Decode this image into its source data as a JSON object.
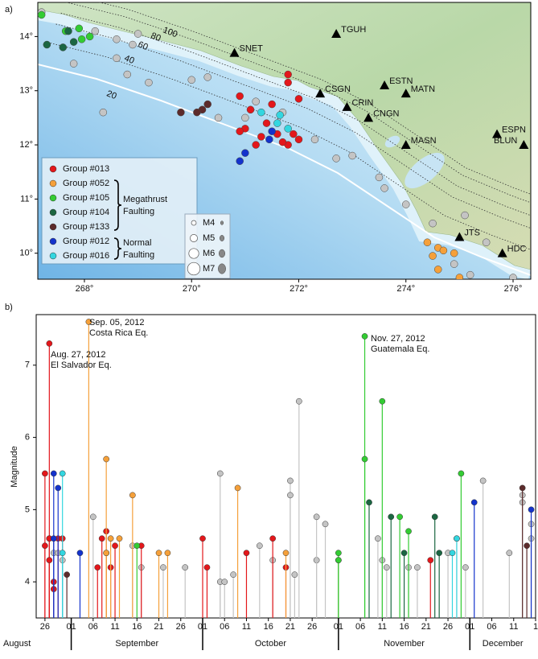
{
  "chart_data": [
    {
      "type": "scatter",
      "panel_label": "a)",
      "xlim": [
        267.13,
        276.33
      ],
      "ylim": [
        9.52,
        14.63
      ],
      "xticks": [
        {
          "value": 268,
          "label": "268°"
        },
        {
          "value": 270,
          "label": "270°"
        },
        {
          "value": 272,
          "label": "272°"
        },
        {
          "value": 274,
          "label": "274°"
        },
        {
          "value": 276,
          "label": "276°"
        }
      ],
      "yticks": [
        {
          "value": 10,
          "label": "10°"
        },
        {
          "value": 11,
          "label": "11°"
        },
        {
          "value": 12,
          "label": "12°"
        },
        {
          "value": 13,
          "label": "13°"
        },
        {
          "value": 14,
          "label": "14°"
        }
      ],
      "depth_contours": [
        100,
        80,
        60,
        40,
        20
      ],
      "fault_labels": [
        [
          "Megathrust",
          "Faulting"
        ],
        [
          "Normal",
          "Faulting"
        ]
      ],
      "magnitude_legend": [
        "M4",
        "M5",
        "M6",
        "M7"
      ],
      "stations": [
        {
          "name": "SNET",
          "lon": 270.8,
          "lat": 13.7
        },
        {
          "name": "TGUH",
          "lon": 272.7,
          "lat": 14.05
        },
        {
          "name": "CSGN",
          "lon": 272.4,
          "lat": 12.95
        },
        {
          "name": "ESTN",
          "lon": 273.6,
          "lat": 13.1
        },
        {
          "name": "MATN",
          "lon": 274.0,
          "lat": 12.95
        },
        {
          "name": "CRIN",
          "lon": 272.9,
          "lat": 12.7
        },
        {
          "name": "CNGN",
          "lon": 273.3,
          "lat": 12.5
        },
        {
          "name": "MASN",
          "lon": 274.0,
          "lat": 12.0
        },
        {
          "name": "ESPN",
          "lon": 275.7,
          "lat": 12.2
        },
        {
          "name": "BLUN",
          "lon": 276.2,
          "lat": 12.0
        },
        {
          "name": "JTS",
          "lon": 275.0,
          "lat": 10.3
        },
        {
          "name": "HDC",
          "lon": 275.8,
          "lat": 10.0
        }
      ],
      "series": [
        {
          "color": "#c4c4c4",
          "x": [
            267.2,
            268.2,
            268.6,
            268.9,
            269.0,
            268.6,
            269.2,
            268.8,
            270.0,
            270.5,
            271.0,
            271.2,
            271.7,
            272.3,
            272.7,
            273.0,
            273.5,
            273.6,
            274.0,
            274.5,
            275.1,
            275.5,
            274.9,
            275.2,
            276.0,
            270.3,
            267.8,
            268.35
          ],
          "values": [
            14.45,
            14.1,
            13.95,
            13.85,
            14.05,
            13.6,
            13.15,
            13.3,
            13.2,
            12.5,
            12.5,
            12.8,
            12.6,
            12.1,
            11.75,
            11.8,
            11.4,
            11.2,
            10.9,
            10.55,
            10.7,
            10.2,
            9.8,
            9.6,
            9.55,
            13.25,
            13.5,
            12.6
          ]
        },
        {
          "name": "Group #013",
          "color": "#e3171b",
          "x": [
            271.8,
            271.8,
            272.0,
            270.9,
            271.0,
            271.4,
            271.6,
            271.8,
            271.9,
            271.2,
            271.3,
            270.9,
            271.5,
            271.1,
            271.7,
            272.0
          ],
          "values": [
            13.3,
            13.15,
            12.85,
            12.9,
            12.3,
            12.4,
            12.2,
            12.0,
            12.2,
            12.0,
            12.15,
            12.25,
            12.75,
            12.65,
            12.05,
            12.1
          ]
        },
        {
          "name": "Group #052",
          "color": "#f5a03a",
          "x": [
            274.6,
            274.7,
            274.4,
            274.5,
            274.6,
            274.9,
            275.0
          ],
          "values": [
            10.1,
            10.05,
            10.2,
            9.95,
            9.7,
            10.0,
            9.55
          ]
        },
        {
          "name": "Group #105",
          "color": "#33cc33",
          "x": [
            267.9,
            267.95,
            268.1,
            267.2,
            267.65
          ],
          "values": [
            14.15,
            13.95,
            14.0,
            14.4,
            14.1
          ]
        },
        {
          "name": "Group #104",
          "color": "#1b6642",
          "x": [
            267.3,
            267.7,
            267.8,
            267.6
          ],
          "values": [
            13.85,
            14.1,
            13.9,
            13.8
          ]
        },
        {
          "name": "Group #133",
          "color": "#5c2b2b",
          "x": [
            269.8,
            270.2,
            270.3,
            270.1
          ],
          "values": [
            12.6,
            12.65,
            12.75,
            12.6
          ]
        },
        {
          "name": "Group #012",
          "color": "#1433cc",
          "x": [
            271.0,
            270.9,
            271.5,
            271.45
          ],
          "values": [
            11.85,
            11.7,
            12.25,
            12.1
          ]
        },
        {
          "name": "Group #016",
          "color": "#33d6e0",
          "x": [
            271.3,
            271.6,
            271.8,
            271.65
          ],
          "values": [
            12.6,
            12.4,
            12.3,
            12.55
          ]
        }
      ]
    },
    {
      "type": "stem",
      "panel_label": "b)",
      "y_label": "Magnitude",
      "xlim": [
        "2012-08-24",
        "2012-12-16"
      ],
      "xticks": [
        {
          "value": "2012-08-26",
          "label": "26"
        },
        {
          "value": "2012-09-01",
          "label": "01"
        },
        {
          "value": "2012-09-06",
          "label": "06"
        },
        {
          "value": "2012-09-11",
          "label": "11"
        },
        {
          "value": "2012-09-16",
          "label": "16"
        },
        {
          "value": "2012-09-21",
          "label": "21"
        },
        {
          "value": "2012-09-26",
          "label": "26"
        },
        {
          "value": "2012-10-01",
          "label": "01"
        },
        {
          "value": "2012-10-06",
          "label": "06"
        },
        {
          "value": "2012-10-11",
          "label": "11"
        },
        {
          "value": "2012-10-16",
          "label": "16"
        },
        {
          "value": "2012-10-21",
          "label": "21"
        },
        {
          "value": "2012-10-26",
          "label": "26"
        },
        {
          "value": "2012-11-01",
          "label": "01"
        },
        {
          "value": "2012-11-06",
          "label": "06"
        },
        {
          "value": "2012-11-11",
          "label": "11"
        },
        {
          "value": "2012-11-16",
          "label": "16"
        },
        {
          "value": "2012-11-21",
          "label": "21"
        },
        {
          "value": "2012-11-26",
          "label": "26"
        },
        {
          "value": "2012-12-01",
          "label": "01"
        },
        {
          "value": "2012-12-06",
          "label": "06"
        },
        {
          "value": "2012-12-11",
          "label": "11"
        },
        {
          "value": "2012-12-16",
          "label": "1"
        }
      ],
      "months": [
        "August",
        "September",
        "October",
        "November",
        "December"
      ],
      "ylim": [
        3.5,
        7.7
      ],
      "yticks": [
        4,
        5,
        6,
        7
      ],
      "annotations": [
        [
          "Aug. 27, 2012",
          "El Salvador Eq."
        ],
        [
          "Sep. 05, 2012",
          "Costa Rica Eq."
        ],
        [
          "Nov. 27, 2012",
          "Guatemala Eq."
        ]
      ],
      "series": [
        {
          "color": "#c4c4c4",
          "x": [
            "2012-08-27",
            "2012-08-28",
            "2012-08-29",
            "2012-08-30",
            "2012-09-06",
            "2012-09-09",
            "2012-09-15",
            "2012-09-17",
            "2012-09-22",
            "2012-09-27",
            "2012-10-05",
            "2012-10-05",
            "2012-10-06",
            "2012-10-08",
            "2012-10-14",
            "2012-10-17",
            "2012-10-21",
            "2012-10-21",
            "2012-10-22",
            "2012-10-23",
            "2012-10-27",
            "2012-10-27",
            "2012-10-29",
            "2012-11-10",
            "2012-11-11",
            "2012-11-12",
            "2012-11-17",
            "2012-11-19",
            "2012-11-26",
            "2012-11-28",
            "2012-11-30",
            "2012-12-04",
            "2012-12-10",
            "2012-12-13",
            "2012-12-13",
            "2012-12-15",
            "2012-12-15"
          ],
          "values": [
            4.6,
            4.4,
            4.4,
            4.3,
            4.9,
            4.4,
            4.5,
            4.2,
            4.2,
            4.2,
            5.5,
            4.0,
            4.0,
            4.1,
            4.5,
            4.3,
            5.4,
            5.2,
            4.1,
            6.5,
            4.3,
            4.9,
            4.8,
            4.6,
            4.3,
            4.2,
            4.2,
            4.2,
            4.4,
            4.6,
            4.2,
            5.4,
            4.4,
            5.2,
            5.1,
            4.8,
            4.6
          ]
        },
        {
          "name": "Group #013",
          "color": "#e3171b",
          "x": [
            "2012-08-26",
            "2012-08-26",
            "2012-08-27",
            "2012-08-27",
            "2012-08-27",
            "2012-08-28",
            "2012-08-28",
            "2012-08-29",
            "2012-08-30",
            "2012-09-07",
            "2012-09-08",
            "2012-09-09",
            "2012-09-10",
            "2012-09-11",
            "2012-09-17",
            "2012-10-01",
            "2012-10-02",
            "2012-10-11",
            "2012-10-17",
            "2012-10-20",
            "2012-11-01",
            "2012-11-22"
          ],
          "values": [
            5.5,
            4.5,
            7.3,
            4.6,
            4.3,
            4.0,
            3.9,
            4.6,
            4.6,
            4.2,
            4.6,
            4.7,
            4.2,
            4.5,
            4.5,
            4.6,
            4.2,
            4.4,
            4.6,
            4.2,
            4.3,
            4.3
          ]
        },
        {
          "name": "Group #052",
          "color": "#f5a03a",
          "x": [
            "2012-09-05",
            "2012-09-09",
            "2012-09-09",
            "2012-09-10",
            "2012-09-12",
            "2012-09-15",
            "2012-09-21",
            "2012-09-23",
            "2012-10-09",
            "2012-10-20"
          ],
          "values": [
            7.6,
            5.7,
            4.4,
            4.6,
            4.6,
            5.2,
            4.4,
            4.4,
            5.3,
            4.4
          ]
        },
        {
          "name": "Group #105",
          "color": "#33cc33",
          "x": [
            "2012-09-16",
            "2012-11-01",
            "2012-11-01",
            "2012-11-07",
            "2012-11-07",
            "2012-11-11",
            "2012-11-15",
            "2012-11-17",
            "2012-11-29"
          ],
          "values": [
            4.5,
            4.4,
            4.3,
            7.4,
            5.7,
            6.5,
            4.9,
            4.7,
            5.5
          ]
        },
        {
          "name": "Group #104",
          "color": "#1b6642",
          "x": [
            "2012-11-08",
            "2012-11-13",
            "2012-11-16",
            "2012-11-23",
            "2012-11-24"
          ],
          "values": [
            5.1,
            4.9,
            4.4,
            4.9,
            4.4
          ]
        },
        {
          "name": "Group #133",
          "color": "#5c2b2b",
          "x": [
            "2012-08-31",
            "2012-12-13",
            "2012-12-14"
          ],
          "values": [
            4.1,
            5.3,
            4.5
          ]
        },
        {
          "name": "Group #012",
          "color": "#1433cc",
          "x": [
            "2012-08-28",
            "2012-08-29",
            "2012-08-28",
            "2012-09-03",
            "2012-12-02",
            "2012-12-15"
          ],
          "values": [
            5.5,
            5.3,
            4.6,
            4.4,
            5.1,
            5.0
          ]
        },
        {
          "name": "Group #016",
          "color": "#33d6e0",
          "x": [
            "2012-08-30",
            "2012-08-30",
            "2012-11-27",
            "2012-11-28"
          ],
          "values": [
            5.5,
            4.4,
            4.4,
            4.6
          ]
        }
      ]
    }
  ]
}
